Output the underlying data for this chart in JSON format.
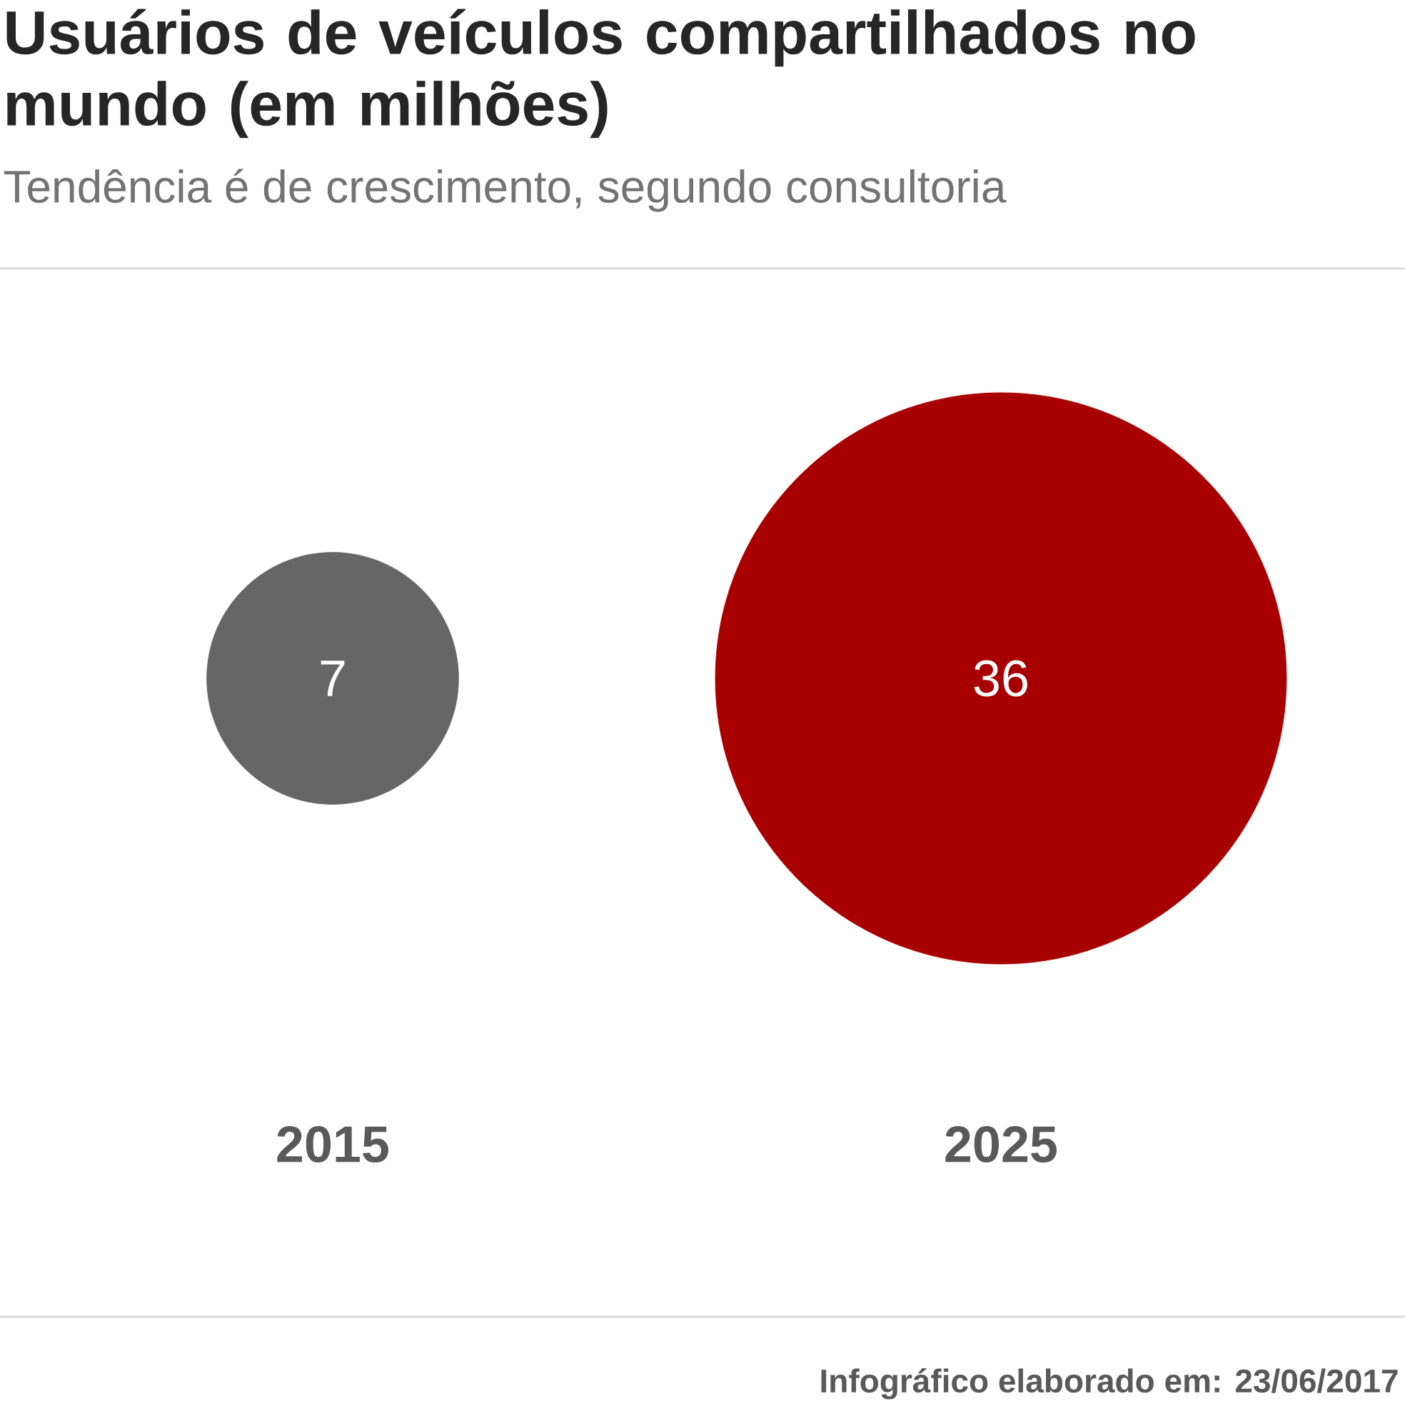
{
  "chart_data": {
    "type": "other",
    "title": "Usuários de veículos compartilhados no mundo (em milhões)",
    "subtitle": "Tendência é de crescimento, segundo consultoria",
    "categories": [
      "2015",
      "2025"
    ],
    "values": [
      7,
      36
    ],
    "colors": [
      "#666666",
      "#a80000"
    ],
    "data_labels": true,
    "annotations": [
      "Infográfico elaborado em: 23/06/2017"
    ]
  }
}
